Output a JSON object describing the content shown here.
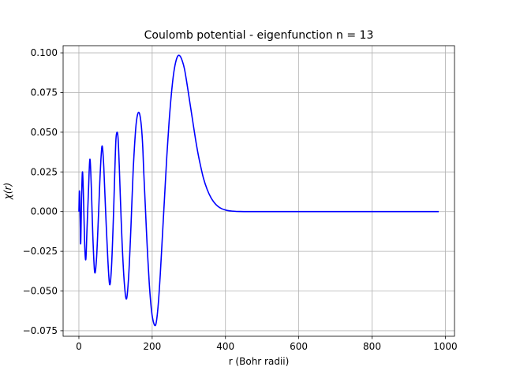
{
  "chart_data": {
    "type": "line",
    "title": "Coulomb potential - eigenfunction n = 13",
    "xlabel": "r  (Bohr radii)",
    "ylabel": "χ(r)",
    "xlim": [
      -43,
      1025
    ],
    "ylim": [
      -0.0785,
      0.1045
    ],
    "xticks": [
      0,
      200,
      400,
      600,
      800,
      1000
    ],
    "yticks": [
      -0.075,
      -0.05,
      -0.025,
      0.0,
      0.025,
      0.05,
      0.075,
      0.1
    ],
    "xtick_labels": [
      "0",
      "200",
      "400",
      "600",
      "800",
      "1000"
    ],
    "ytick_labels": [
      "−0.075",
      "−0.050",
      "−0.025",
      "0.000",
      "0.025",
      "0.050",
      "0.075",
      "0.100"
    ],
    "grid": true,
    "series": [
      {
        "color": "#0000ff",
        "x": [
          0,
          1.5,
          3.5,
          5,
          7.5,
          10,
          13,
          16,
          19,
          22,
          26,
          30,
          34,
          38,
          43,
          48,
          53,
          57,
          61,
          64,
          68,
          73,
          79,
          84,
          89,
          94,
          98,
          101,
          104,
          107,
          110,
          113,
          118,
          124,
          130,
          136,
          142,
          148,
          155,
          160,
          165,
          170,
          174,
          177,
          181,
          186,
          192,
          198,
          204,
          210,
          216,
          222,
          228,
          234,
          240,
          246,
          252,
          258,
          264,
          270,
          276,
          282,
          288,
          294,
          300,
          306,
          312,
          318,
          324,
          330,
          340,
          350,
          360,
          370,
          380,
          390,
          400,
          410,
          420,
          430,
          440,
          450,
          460,
          470,
          480,
          500,
          520,
          560,
          600,
          700,
          800,
          900,
          982
        ],
        "y": [
          0,
          0.013,
          -0.005,
          -0.02,
          0.01,
          0.025,
          0.005,
          -0.022,
          -0.03,
          -0.012,
          0.012,
          0.033,
          0.015,
          -0.015,
          -0.038,
          -0.03,
          -0.005,
          0.018,
          0.036,
          0.041,
          0.028,
          0,
          -0.03,
          -0.046,
          -0.035,
          -0.005,
          0.025,
          0.045,
          0.05,
          0.046,
          0.03,
          0.01,
          -0.02,
          -0.045,
          -0.055,
          -0.04,
          -0.01,
          0.025,
          0.052,
          0.061,
          0.062,
          0.055,
          0.042,
          0.025,
          0.005,
          -0.02,
          -0.045,
          -0.062,
          -0.07,
          -0.071,
          -0.06,
          -0.04,
          -0.015,
          0.01,
          0.035,
          0.056,
          0.073,
          0.086,
          0.094,
          0.098,
          0.098,
          0.095,
          0.09,
          0.082,
          0.073,
          0.064,
          0.055,
          0.046,
          0.038,
          0.031,
          0.021,
          0.014,
          0.009,
          0.0055,
          0.0032,
          0.0018,
          0.001,
          0.0005,
          0.0003,
          0.0001,
          5e-05,
          2e-05,
          0,
          0,
          0,
          0,
          0,
          0,
          0,
          0,
          0,
          0,
          0
        ]
      }
    ]
  }
}
